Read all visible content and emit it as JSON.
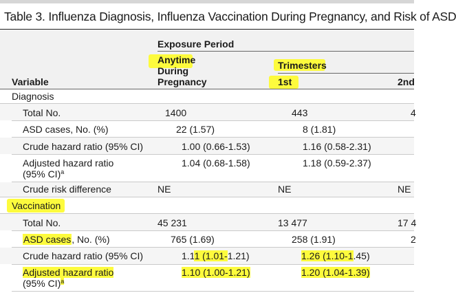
{
  "title": "Table 3. Influenza Diagnosis, Influenza Vaccination During Pregnancy, and Risk of ASD",
  "header": {
    "exposure_period": "Exposure Period",
    "anytime_line1": "Anytime",
    "anytime_line2": "During",
    "anytime_line3": "Pregnancy",
    "trimesters": "Trimesters",
    "first": "1st",
    "second": "2nd",
    "variable": "Variable"
  },
  "diagnosis": {
    "section_label": "Diagnosis",
    "total_label": "Total No.",
    "total_anytime": "1400",
    "total_first": "443",
    "total_second_clip": "4",
    "asd_label": "ASD cases, No. (%)",
    "asd_anytime": "22 (1.57)",
    "asd_first": "8 (1.81)",
    "crude_label": "Crude hazard ratio (95% CI)",
    "crude_anytime": "1.00 (0.66-1.53)",
    "crude_first": "1.16 (0.58-2.31)",
    "adj_label_line1": "Adjusted hazard ratio",
    "adj_label_line2": "(95% CI)",
    "adj_sup": "a",
    "adj_anytime": "1.04 (0.68-1.58)",
    "adj_first": "1.18 (0.59-2.37)",
    "risk_label": "Crude risk difference",
    "risk_anytime": "NE",
    "risk_first": "NE",
    "risk_second": "NE"
  },
  "vaccination": {
    "section_label": "Vaccination",
    "total_label": "Total No.",
    "total_anytime": "45 231",
    "total_first": "13 477",
    "total_second_clip": "17 4",
    "asd_label_highlight": "ASD cases",
    "asd_label_rest": ", No. (%)",
    "asd_anytime": "765 (1.69)",
    "asd_first": "258 (1.91)",
    "asd_second_clip": "2",
    "crude_label": "Crude hazard ratio (95% CI)",
    "crude_anytime_a": "1.1",
    "crude_anytime_b": "1 (1.01-",
    "crude_anytime_c": "1.21)",
    "crude_first_a": "1.26 (1.10-1",
    "crude_first_b": ".45)",
    "adj_label_line1": "Adjusted hazard ratio",
    "adj_label_line2": "(95% CI)",
    "adj_sup": "a",
    "adj_anytime": "1.10 (1.00-1.21)",
    "adj_first": "1.20 (1.04-1.39)"
  },
  "colors": {
    "highlight": "#fdfb3d",
    "header_bg": "#f1f1f1",
    "band_bg": "#f5f5f5"
  }
}
